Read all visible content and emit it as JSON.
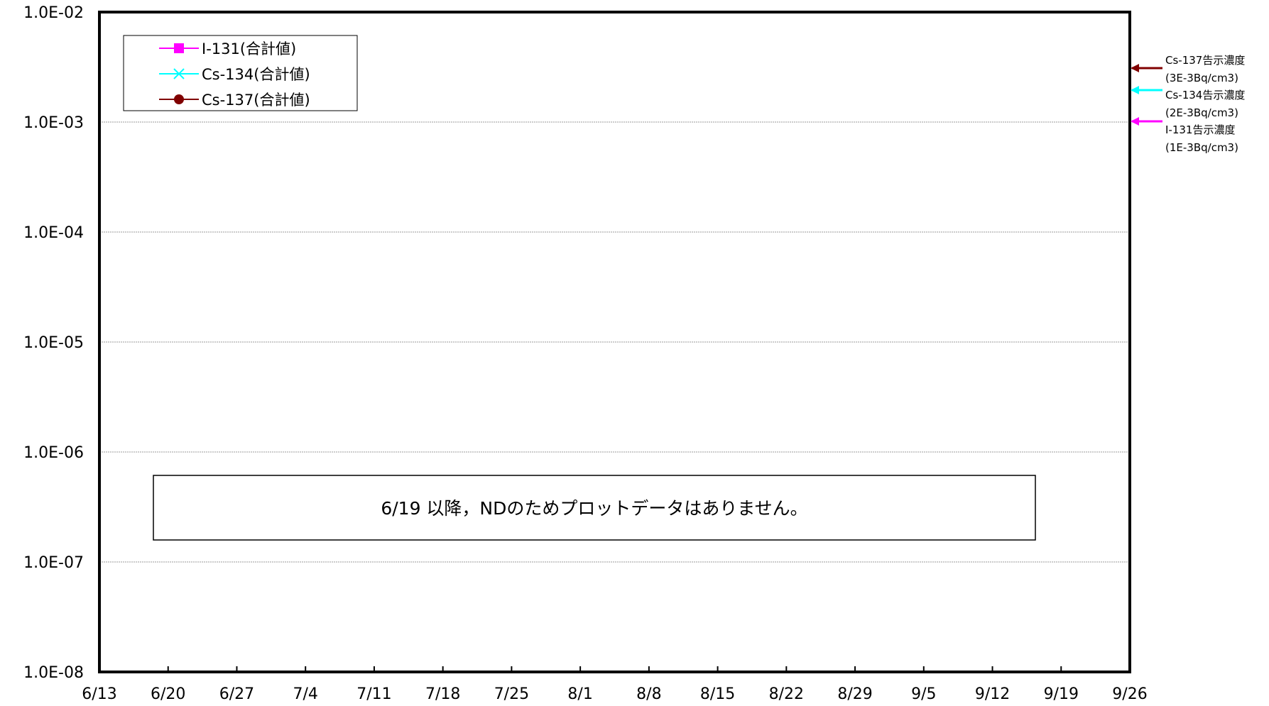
{
  "chart_data": {
    "type": "line",
    "yscale": "log",
    "ylim": [
      1e-08,
      0.01
    ],
    "y_tick_labels": [
      "1.0E-02",
      "1.0E-03",
      "1.0E-04",
      "1.0E-05",
      "1.0E-06",
      "1.0E-07",
      "1.0E-08"
    ],
    "x_tick_labels": [
      "6/13",
      "6/20",
      "6/27",
      "7/4",
      "7/11",
      "7/18",
      "7/25",
      "8/1",
      "8/8",
      "8/15",
      "8/22",
      "8/29",
      "9/5",
      "9/12",
      "9/19",
      "9/26"
    ],
    "grid": "horizontal",
    "legend_placement": "top-left",
    "series": [
      {
        "name": "I-131(合計値)",
        "color": "#ff00ff",
        "marker": "square",
        "values": []
      },
      {
        "name": "Cs-134(合計値)",
        "color": "#00ffff",
        "marker": "x",
        "values": []
      },
      {
        "name": "Cs-137(合計値)",
        "color": "#800000",
        "marker": "circle",
        "values": []
      }
    ],
    "reference_limits": [
      {
        "label": "Cs-137告示濃度",
        "sublabel": "(3E-3Bq/cm3)",
        "value": 0.003,
        "color": "#800000"
      },
      {
        "label": "Cs-134告示濃度",
        "sublabel": "(2E-3Bq/cm3)",
        "value": 0.002,
        "color": "#00ffff"
      },
      {
        "label": "I-131告示濃度",
        "sublabel": "(1E-3Bq/cm3)",
        "value": 0.001,
        "color": "#ff00ff"
      }
    ],
    "annotation": "6/19 以降，NDのためプロットデータはありません。"
  }
}
